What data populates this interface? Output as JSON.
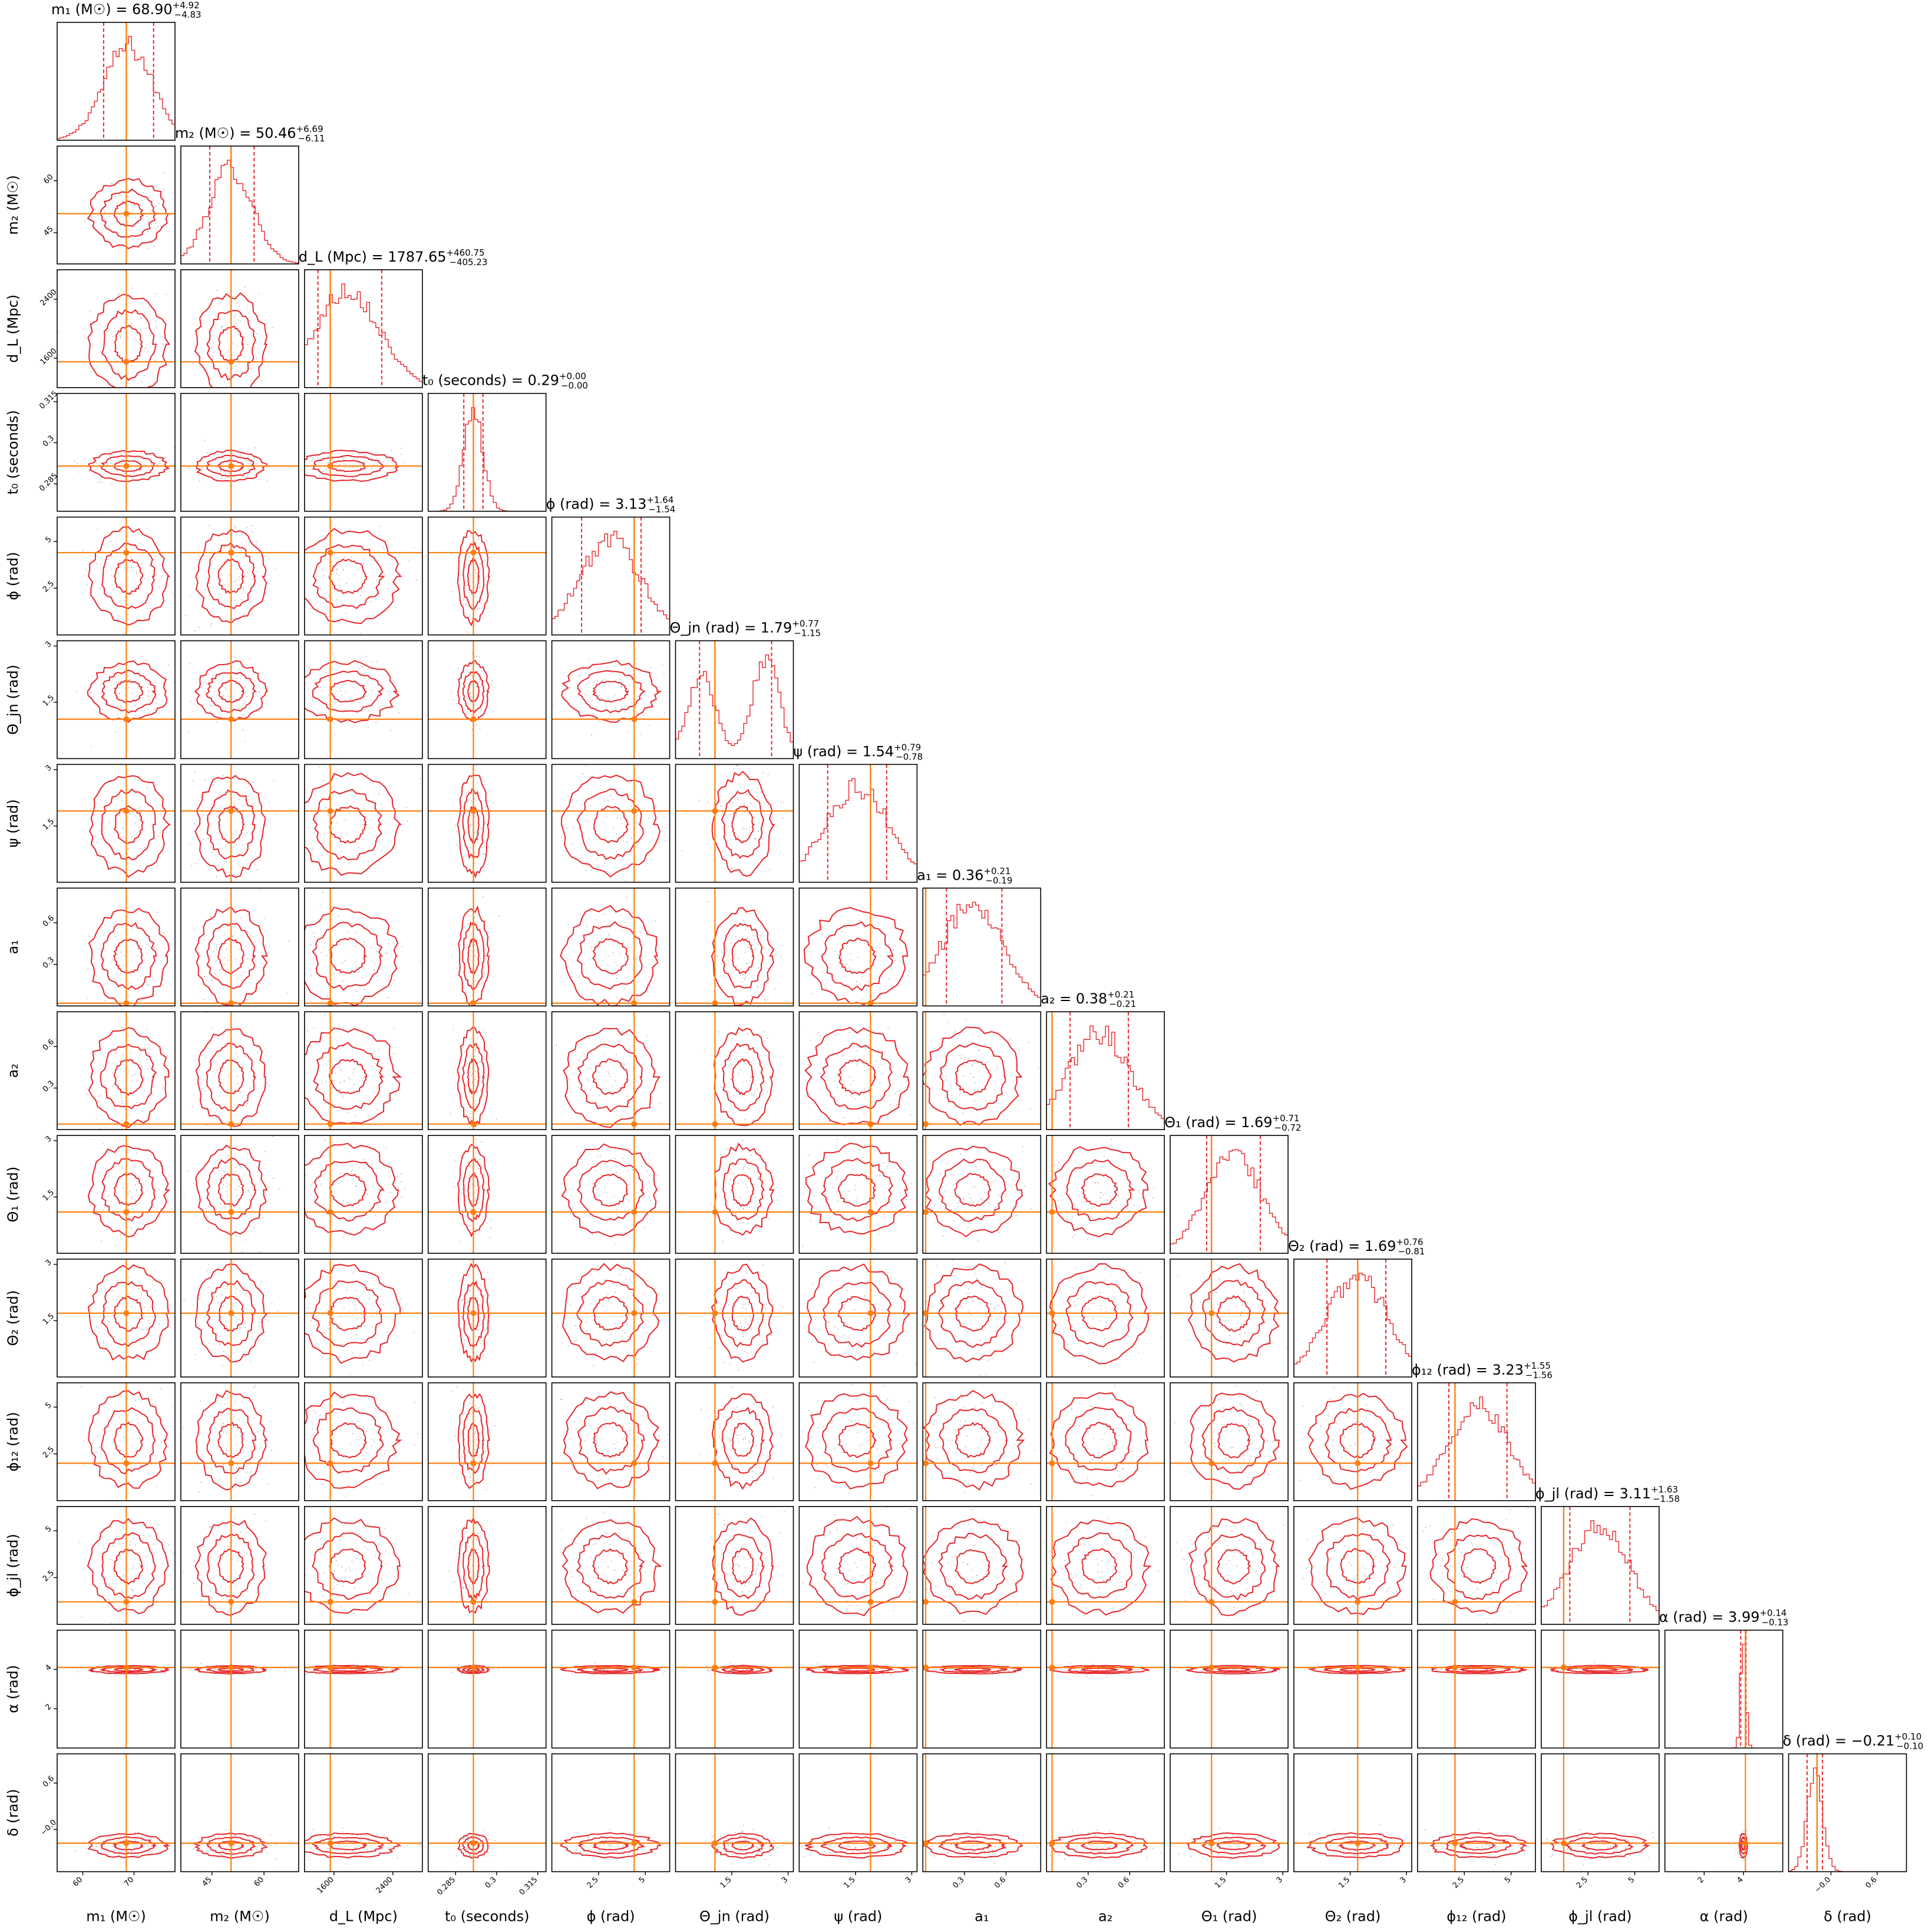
{
  "chart_data": {
    "type": "corner",
    "colors": {
      "posterior": "#e8262a",
      "truth": "#ff7f0e",
      "frame": "#000000",
      "scatter": "#b0b0b0"
    },
    "params": [
      {
        "name": "m1",
        "label": "m₁ (M☉)",
        "title": "m₁ (M☉) = 68.90",
        "plus": "+4.92",
        "minus": "−4.83",
        "range": [
          55,
          78
        ],
        "ticks": [
          60,
          70
        ],
        "median": 68.9,
        "lo": 64.07,
        "hi": 73.82,
        "truth": 68.5,
        "sigma": 4.8,
        "modes": 1
      },
      {
        "name": "m2",
        "label": "m₂ (M☉)",
        "title": "m₂ (M☉) = 50.46",
        "plus": "+6.69",
        "minus": "−6.11",
        "range": [
          36,
          70
        ],
        "ticks": [
          45,
          60
        ],
        "median": 50.46,
        "lo": 44.35,
        "hi": 57.15,
        "truth": 50.5,
        "sigma": 6.3,
        "modes": 1
      },
      {
        "name": "dL",
        "label": "d_L (Mpc)",
        "title": "d_L (Mpc) = 1787.65",
        "plus": "+460.75",
        "minus": "−405.23",
        "range": [
          1200,
          2800
        ],
        "ticks": [
          1600,
          2400
        ],
        "median": 1787.65,
        "lo": 1382.42,
        "hi": 2248.4,
        "truth": 1550,
        "sigma": 430,
        "modes": 1
      },
      {
        "name": "t0",
        "label": "t₀ (seconds)",
        "title": "t₀ (seconds) = 0.29",
        "plus": "+0.00",
        "minus": "−0.00",
        "range": [
          0.275,
          0.318
        ],
        "ticks": [
          0.285,
          0.3,
          0.315
        ],
        "median": 0.2915,
        "lo": 0.288,
        "hi": 0.295,
        "truth": 0.2915,
        "sigma": 0.0035,
        "modes": 1
      },
      {
        "name": "phi",
        "label": "ϕ (rad)",
        "title": "ϕ (rad) = 3.13",
        "plus": "+1.64",
        "minus": "−1.54",
        "range": [
          0,
          6.3
        ],
        "ticks": [
          2.5,
          5.0
        ],
        "median": 3.13,
        "lo": 1.59,
        "hi": 4.77,
        "truth": 4.4,
        "sigma": 1.6,
        "modes": 1
      },
      {
        "name": "thetajn",
        "label": "Θ_jn (rad)",
        "title": "Θ_jn (rad) = 1.79",
        "plus": "+0.77",
        "minus": "−1.15",
        "range": [
          0,
          3.14
        ],
        "ticks": [
          1.5,
          3.0
        ],
        "median": 1.79,
        "lo": 0.64,
        "hi": 2.56,
        "truth": 1.05,
        "sigma": 0.5,
        "modes": 2
      },
      {
        "name": "psi",
        "label": "ψ (rad)",
        "title": "ψ (rad) = 1.54",
        "plus": "+0.79",
        "minus": "−0.78",
        "range": [
          0,
          3.14
        ],
        "ticks": [
          1.5,
          3.0
        ],
        "median": 1.54,
        "lo": 0.76,
        "hi": 2.33,
        "truth": 1.9,
        "sigma": 0.85,
        "modes": 1
      },
      {
        "name": "a1",
        "label": "a₁",
        "title": "a₁ = 0.36",
        "plus": "+0.21",
        "minus": "−0.19",
        "range": [
          0,
          0.85
        ],
        "ticks": [
          0.3,
          0.6
        ],
        "median": 0.36,
        "lo": 0.17,
        "hi": 0.57,
        "truth": 0.02,
        "sigma": 0.22,
        "modes": 1
      },
      {
        "name": "a2",
        "label": "a₂",
        "title": "a₂ = 0.38",
        "plus": "+0.21",
        "minus": "−0.21",
        "range": [
          0,
          0.85
        ],
        "ticks": [
          0.3,
          0.6
        ],
        "median": 0.38,
        "lo": 0.17,
        "hi": 0.59,
        "truth": 0.04,
        "sigma": 0.22,
        "modes": 1
      },
      {
        "name": "theta1",
        "label": "Θ₁ (rad)",
        "title": "Θ₁ (rad) = 1.69",
        "plus": "+0.71",
        "minus": "−0.72",
        "range": [
          0,
          3.14
        ],
        "ticks": [
          1.5,
          3.0
        ],
        "median": 1.69,
        "lo": 0.97,
        "hi": 2.4,
        "truth": 1.1,
        "sigma": 0.75,
        "modes": 1
      },
      {
        "name": "theta2",
        "label": "Θ₂ (rad)",
        "title": "Θ₂ (rad) = 1.69",
        "plus": "+0.76",
        "minus": "−0.81",
        "range": [
          0,
          3.14
        ],
        "ticks": [
          1.5,
          3.0
        ],
        "median": 1.69,
        "lo": 0.88,
        "hi": 2.45,
        "truth": 1.7,
        "sigma": 0.8,
        "modes": 1
      },
      {
        "name": "phi12",
        "label": "ϕ₁₂ (rad)",
        "title": "ϕ₁₂ (rad) = 3.23",
        "plus": "+1.55",
        "minus": "−1.56",
        "range": [
          0,
          6.3
        ],
        "ticks": [
          2.5,
          5.0
        ],
        "median": 3.23,
        "lo": 1.67,
        "hi": 4.78,
        "truth": 2.0,
        "sigma": 1.6,
        "modes": 1
      },
      {
        "name": "phijl",
        "label": "ϕ_jl (rad)",
        "title": "ϕ_jl (rad) = 3.11",
        "plus": "+1.63",
        "minus": "−1.58",
        "range": [
          0,
          6.3
        ],
        "ticks": [
          2.5,
          5.0
        ],
        "median": 3.11,
        "lo": 1.53,
        "hi": 4.74,
        "truth": 1.2,
        "sigma": 1.6,
        "modes": 1
      },
      {
        "name": "alpha",
        "label": "α (rad)",
        "title": "α (rad) = 3.99",
        "plus": "+0.14",
        "minus": "−0.13",
        "range": [
          0,
          6.0
        ],
        "ticks": [
          2,
          4
        ],
        "median": 3.99,
        "lo": 3.86,
        "hi": 4.13,
        "truth": 4.1,
        "sigma": 0.13,
        "modes": 1
      },
      {
        "name": "delta",
        "label": "δ (rad)",
        "title": "δ (rad) = −0.21",
        "plus": "+0.10",
        "minus": "−0.10",
        "range": [
          -0.55,
          0.98
        ],
        "ticks": [
          -0.0,
          0.6
        ],
        "median": -0.21,
        "lo": -0.31,
        "hi": -0.11,
        "truth": -0.18,
        "sigma": 0.1,
        "modes": 1
      }
    ]
  }
}
